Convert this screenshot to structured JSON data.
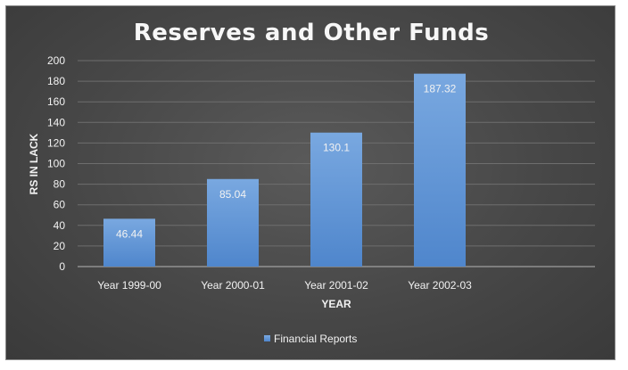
{
  "chart_data": {
    "type": "bar",
    "title": "Reserves and Other Funds",
    "xlabel": "YEAR",
    "ylabel": "RS IN LACK",
    "categories": [
      "Year 1999-00",
      "Year 2000-01",
      "Year 2001-02",
      "Year 2002-03"
    ],
    "series": [
      {
        "name": "Financial Reports",
        "values": [
          46.44,
          85.04,
          130.1,
          187.32
        ]
      }
    ],
    "data_labels": [
      "46.44",
      "85.04",
      "130.1",
      "187.32"
    ],
    "ylim": [
      0,
      200
    ],
    "yticks": [
      0,
      20,
      40,
      60,
      80,
      100,
      120,
      140,
      160,
      180,
      200
    ],
    "grid": true,
    "legend_position": "bottom",
    "colors": {
      "bar_top": "#79a8e0",
      "bar_bottom": "#4f86cc",
      "grid": "#6e6e6e",
      "text": "#f2f2f2"
    }
  }
}
